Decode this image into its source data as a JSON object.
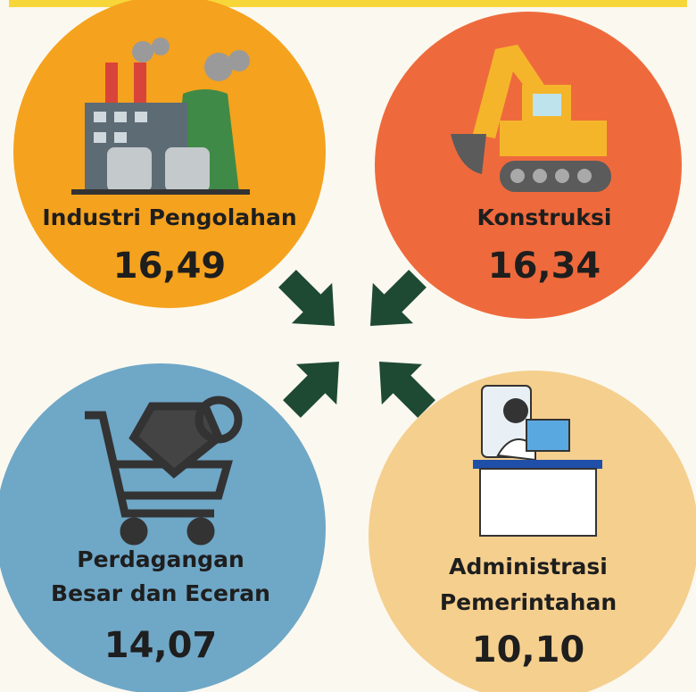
{
  "items": [
    {
      "label": [
        "Industri Pengolahan"
      ],
      "value": "16,49"
    },
    {
      "label": [
        "Konstruksi"
      ],
      "value": "16,34"
    },
    {
      "label": [
        "Perdagangan",
        "Besar dan Eceran"
      ],
      "value": "14,07"
    },
    {
      "label": [
        "Administrasi",
        "Pemerintahan"
      ],
      "value": "10,10"
    }
  ]
}
